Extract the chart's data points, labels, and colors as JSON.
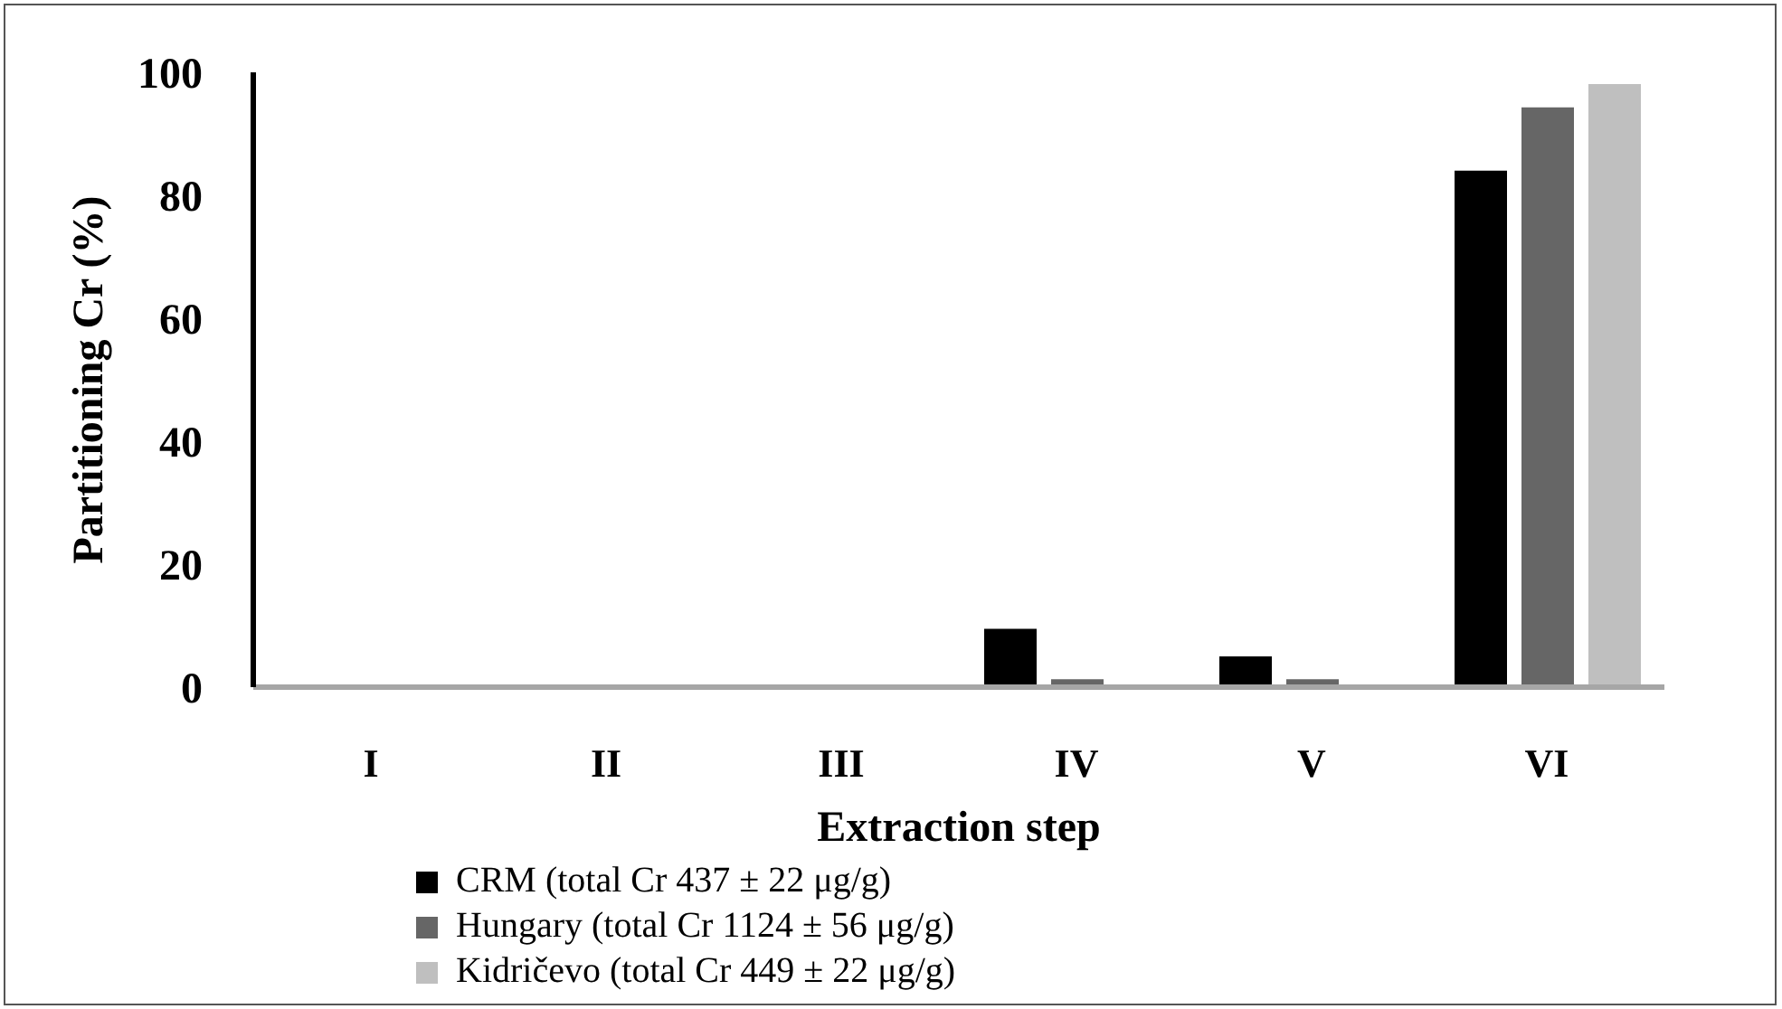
{
  "chart_data": {
    "type": "bar",
    "xlabel": "Extraction step",
    "ylabel": "Partitioning Cr (%)",
    "categories": [
      "I",
      "II",
      "III",
      "IV",
      "V",
      "VI"
    ],
    "series": [
      {
        "name": "CRM (total Cr 437 ± 22 μg/g)",
        "color": "#000000",
        "values": [
          0,
          0,
          0,
          9.5,
          5,
          84
        ]
      },
      {
        "name": "Hungary (total Cr 1124 ± 56 μg/g)",
        "color": "#666666",
        "values": [
          0,
          0,
          0,
          1.3,
          1.3,
          94.3
        ]
      },
      {
        "name": "Kidričevo (total Cr 449 ± 22 μg/g)",
        "color": "#bfbfbf",
        "values": [
          0,
          0,
          0,
          0,
          0,
          98.1
        ]
      }
    ],
    "ylim": [
      0,
      100
    ],
    "yticks": [
      0,
      20,
      40,
      60,
      80,
      100
    ],
    "grid": false,
    "legend": "bottom"
  }
}
